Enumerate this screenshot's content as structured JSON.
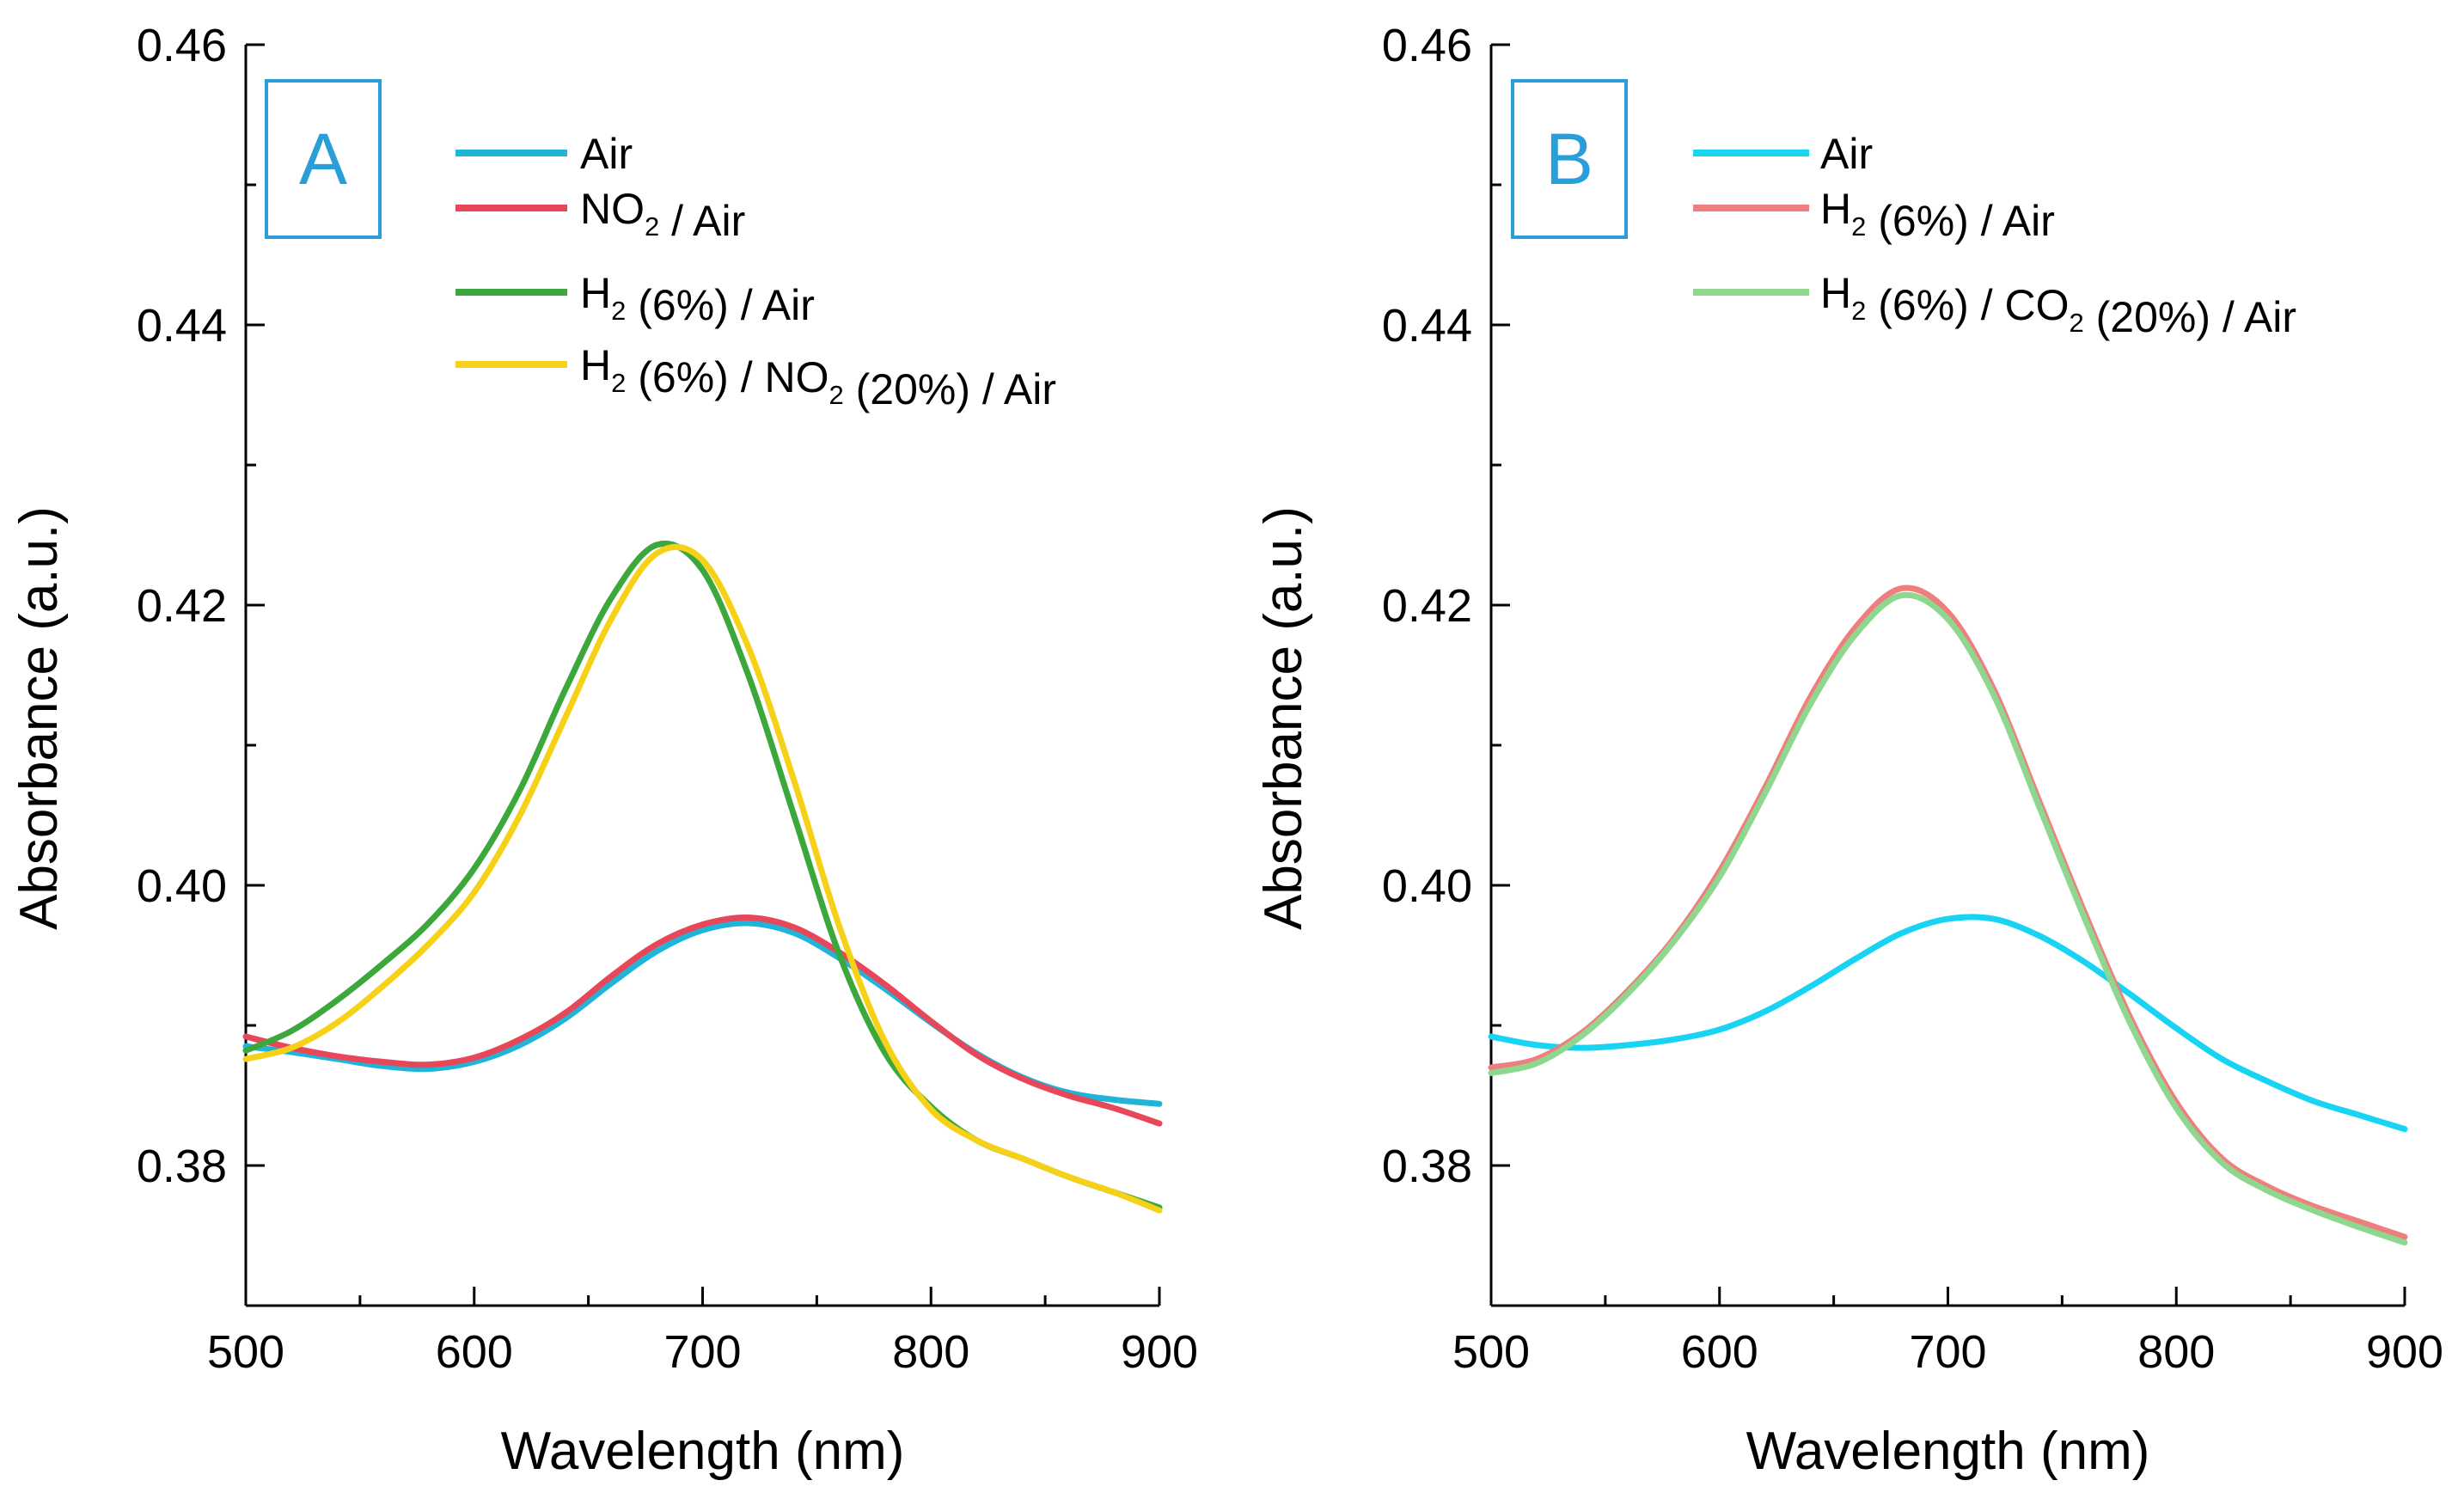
{
  "chart_data": [
    {
      "type": "line",
      "panel_label": "A",
      "xlabel": "Wavelength (nm)",
      "ylabel": "Absorbance (a.u.)",
      "xlim": [
        500,
        900
      ],
      "ylim": [
        0.37,
        0.46
      ],
      "x_ticks": [
        500,
        600,
        700,
        800,
        900
      ],
      "y_ticks": [
        0.38,
        0.4,
        0.42,
        0.44,
        0.46
      ],
      "x_tick_labels": [
        "500",
        "600",
        "700",
        "800",
        "900"
      ],
      "y_tick_labels": [
        "0.38",
        "0.40",
        "0.42",
        "0.44",
        "0.46"
      ],
      "legend_position": "top-right",
      "series": [
        {
          "name": "Air",
          "color": "#1fb4d8",
          "legend": [
            {
              "t": "Air"
            }
          ],
          "x": [
            500,
            520,
            540,
            560,
            580,
            600,
            620,
            640,
            660,
            680,
            700,
            720,
            740,
            760,
            780,
            800,
            820,
            840,
            860,
            880,
            900
          ],
          "y": [
            0.3885,
            0.3881,
            0.3876,
            0.3871,
            0.3869,
            0.3874,
            0.3886,
            0.3905,
            0.393,
            0.3953,
            0.3968,
            0.3973,
            0.3966,
            0.3948,
            0.3926,
            0.3902,
            0.388,
            0.3863,
            0.3852,
            0.3847,
            0.3844
          ]
        },
        {
          "name": "NO2 / Air",
          "color": "#e8475a",
          "legend": [
            {
              "t": "NO"
            },
            {
              "t": "2",
              "sub": true
            },
            {
              "t": " / Air"
            }
          ],
          "x": [
            500,
            520,
            540,
            560,
            580,
            600,
            620,
            640,
            660,
            680,
            700,
            720,
            740,
            760,
            780,
            800,
            820,
            840,
            860,
            880,
            900
          ],
          "y": [
            0.3892,
            0.3884,
            0.3878,
            0.3874,
            0.3872,
            0.3877,
            0.389,
            0.3909,
            0.3935,
            0.3958,
            0.3972,
            0.3977,
            0.397,
            0.3952,
            0.3929,
            0.3903,
            0.3879,
            0.3862,
            0.385,
            0.3841,
            0.383
          ]
        },
        {
          "name": "H2 (6%) / Air",
          "color": "#3ca83c",
          "legend": [
            {
              "t": "H"
            },
            {
              "t": "2",
              "sub": true
            },
            {
              "t": " (6%) / Air"
            }
          ],
          "x": [
            500,
            520,
            540,
            560,
            580,
            600,
            620,
            640,
            660,
            680,
            700,
            720,
            740,
            760,
            780,
            800,
            820,
            840,
            860,
            880,
            900
          ],
          "y": [
            0.3882,
            0.3896,
            0.3918,
            0.3944,
            0.3973,
            0.4012,
            0.4068,
            0.414,
            0.4205,
            0.4243,
            0.4225,
            0.415,
            0.405,
            0.395,
            0.388,
            0.3842,
            0.3818,
            0.3805,
            0.3792,
            0.3781,
            0.377
          ]
        },
        {
          "name": "H2 (6%) / NO2 (20%) / Air",
          "color": "#f7d117",
          "legend": [
            {
              "t": "H"
            },
            {
              "t": "2",
              "sub": true
            },
            {
              "t": " (6%) / NO"
            },
            {
              "t": "2",
              "sub": true
            },
            {
              "t": " (20%) / Air"
            }
          ],
          "x": [
            500,
            520,
            540,
            560,
            580,
            600,
            620,
            640,
            660,
            680,
            700,
            720,
            740,
            760,
            780,
            800,
            820,
            840,
            860,
            880,
            900
          ],
          "y": [
            0.3876,
            0.3884,
            0.3902,
            0.3928,
            0.3958,
            0.3995,
            0.405,
            0.412,
            0.419,
            0.4237,
            0.4232,
            0.417,
            0.4075,
            0.397,
            0.3888,
            0.384,
            0.3818,
            0.3805,
            0.3792,
            0.3781,
            0.3768
          ]
        }
      ]
    },
    {
      "type": "line",
      "panel_label": "B",
      "xlabel": "Wavelength (nm)",
      "ylabel": "Absorbance (a.u.)",
      "xlim": [
        500,
        900
      ],
      "ylim": [
        0.37,
        0.46
      ],
      "x_ticks": [
        500,
        600,
        700,
        800,
        900
      ],
      "y_ticks": [
        0.38,
        0.4,
        0.42,
        0.44,
        0.46
      ],
      "x_tick_labels": [
        "500",
        "600",
        "700",
        "800",
        "900"
      ],
      "y_tick_labels": [
        "0.38",
        "0.40",
        "0.42",
        "0.44",
        "0.46"
      ],
      "legend_position": "top-right",
      "series": [
        {
          "name": "Air",
          "color": "#19d3f2",
          "legend": [
            {
              "t": "Air"
            }
          ],
          "x": [
            500,
            520,
            540,
            560,
            580,
            600,
            620,
            640,
            660,
            680,
            700,
            720,
            740,
            760,
            780,
            800,
            820,
            840,
            860,
            880,
            900
          ],
          "y": [
            0.3892,
            0.3886,
            0.3884,
            0.3886,
            0.389,
            0.3897,
            0.391,
            0.3928,
            0.3948,
            0.3966,
            0.3976,
            0.3976,
            0.3964,
            0.3945,
            0.3922,
            0.3898,
            0.3876,
            0.386,
            0.3846,
            0.3836,
            0.3826
          ]
        },
        {
          "name": "H2 (6%) / Air",
          "color": "#ef7f7f",
          "legend": [
            {
              "t": "H"
            },
            {
              "t": "2",
              "sub": true
            },
            {
              "t": " (6%) / Air"
            }
          ],
          "x": [
            500,
            520,
            540,
            560,
            580,
            600,
            620,
            640,
            660,
            680,
            700,
            720,
            740,
            760,
            780,
            800,
            820,
            840,
            860,
            880,
            900
          ],
          "y": [
            0.387,
            0.3876,
            0.3895,
            0.3925,
            0.3962,
            0.401,
            0.407,
            0.4135,
            0.4185,
            0.4212,
            0.4195,
            0.414,
            0.406,
            0.398,
            0.3905,
            0.3845,
            0.3805,
            0.3785,
            0.3771,
            0.376,
            0.3749
          ]
        },
        {
          "name": "H2 (6%) / CO2 (20%) / Air",
          "color": "#8fd68f",
          "legend": [
            {
              "t": "H"
            },
            {
              "t": "2",
              "sub": true
            },
            {
              "t": " (6%) / CO"
            },
            {
              "t": "2",
              "sub": true
            },
            {
              "t": " (20%) / Air"
            }
          ],
          "x": [
            500,
            520,
            540,
            560,
            580,
            600,
            620,
            640,
            660,
            680,
            700,
            720,
            740,
            760,
            780,
            800,
            820,
            840,
            860,
            880,
            900
          ],
          "y": [
            0.3866,
            0.3873,
            0.3893,
            0.3923,
            0.396,
            0.4006,
            0.4066,
            0.413,
            0.418,
            0.4207,
            0.419,
            0.4136,
            0.4056,
            0.3976,
            0.3901,
            0.3841,
            0.3802,
            0.3782,
            0.3768,
            0.3756,
            0.3745
          ]
        }
      ]
    }
  ]
}
